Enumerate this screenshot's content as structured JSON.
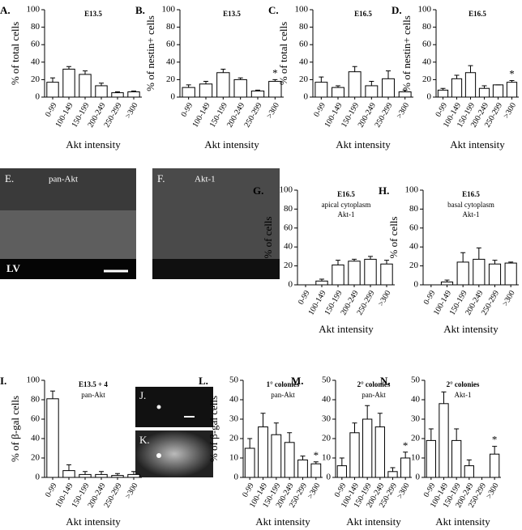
{
  "chart_data": [
    {
      "type": "bar",
      "panel": "A.",
      "title": "E13.5",
      "ylabel": "% of total cells",
      "xlabel": "Akt intensity",
      "categories": [
        "0-99",
        "100-149",
        "150-199",
        "200-249",
        "250-299",
        ">300"
      ],
      "values": [
        17,
        32,
        26,
        13,
        5,
        6
      ],
      "errors": [
        5,
        3,
        4,
        3,
        1,
        1
      ],
      "ylim": [
        0,
        100
      ],
      "yticks": [
        0,
        20,
        40,
        60,
        80,
        100
      ]
    },
    {
      "type": "bar",
      "panel": "B.",
      "title": "E13.5",
      "ylabel": "% of nestin+ cells",
      "xlabel": "Akt intensity",
      "categories": [
        "0-99",
        "100-149",
        "150-199",
        "200-249",
        "250-299",
        ">300"
      ],
      "values": [
        11,
        15,
        28,
        20,
        7,
        18
      ],
      "errors": [
        3,
        3,
        4,
        2,
        1,
        2
      ],
      "ylim": [
        0,
        100
      ],
      "yticks": [
        0,
        20,
        40,
        60,
        80,
        100
      ],
      "annotations": [
        {
          "text": "*",
          "category": ">300"
        }
      ]
    },
    {
      "type": "bar",
      "panel": "C.",
      "title": "E16.5",
      "ylabel": "% of total cells",
      "xlabel": "Akt intensity",
      "categories": [
        "0-99",
        "100-149",
        "150-199",
        "200-249",
        "250-299",
        ">300"
      ],
      "values": [
        17,
        11,
        29,
        13,
        21,
        6
      ],
      "errors": [
        6,
        2,
        6,
        5,
        9,
        2
      ],
      "ylim": [
        0,
        100
      ],
      "yticks": [
        0,
        20,
        40,
        60,
        80,
        100
      ]
    },
    {
      "type": "bar",
      "panel": "D.",
      "title": "E16.5",
      "ylabel": "% of nestin+ cells",
      "xlabel": "Akt intensity",
      "categories": [
        "0-99",
        "100-149",
        "150-199",
        "200-249",
        "250-299",
        ">300"
      ],
      "values": [
        8,
        21,
        28,
        10,
        14,
        17
      ],
      "errors": [
        2,
        4,
        8,
        3,
        0,
        2
      ],
      "ylim": [
        0,
        100
      ],
      "yticks": [
        0,
        20,
        40,
        60,
        80,
        100
      ],
      "annotations": [
        {
          "text": "*",
          "category": ">300"
        }
      ]
    },
    {
      "type": "bar",
      "panel": "G.",
      "title": "E16.5",
      "subtitle": [
        "apical cytoplasm",
        "Akt-1"
      ],
      "ylabel": "% of cells",
      "xlabel": "Akt intensity",
      "categories": [
        "0-99",
        "100-149",
        "150-199",
        "200-249",
        "250-299",
        ">300"
      ],
      "values": [
        0,
        4,
        21,
        25,
        27,
        22
      ],
      "errors": [
        0,
        2,
        5,
        2,
        3,
        4
      ],
      "ylim": [
        0,
        100
      ],
      "yticks": [
        0,
        20,
        40,
        60,
        80,
        100
      ]
    },
    {
      "type": "bar",
      "panel": "H.",
      "title": "E16.5",
      "subtitle": [
        "basal cytoplasm",
        "Akt-1"
      ],
      "ylabel": "% of cells",
      "xlabel": "Akt intensity",
      "categories": [
        "0-99",
        "100-149",
        "150-199",
        "200-249",
        "250-299",
        ">300"
      ],
      "values": [
        0,
        3,
        24,
        27,
        22,
        23
      ],
      "errors": [
        0,
        2,
        10,
        12,
        4,
        1
      ],
      "ylim": [
        0,
        100
      ],
      "yticks": [
        0,
        20,
        40,
        60,
        80,
        100
      ]
    },
    {
      "type": "bar",
      "panel": "I.",
      "title": "E13.5 + 4",
      "subtitle": [
        "pan-Akt"
      ],
      "ylabel": "% of β-gal cells",
      "xlabel": "Akt intensity",
      "categories": [
        "0-99",
        "100-149",
        "150-199",
        "200-249",
        "250-299",
        ">300"
      ],
      "values": [
        81,
        7,
        3,
        3,
        2,
        3
      ],
      "errors": [
        8,
        6,
        3,
        3,
        2,
        3
      ],
      "ylim": [
        0,
        100
      ],
      "yticks": [
        0,
        20,
        40,
        60,
        80,
        100
      ]
    },
    {
      "type": "bar",
      "panel": "L.",
      "title": "1° colonies",
      "subtitle": [
        "pan-Akt"
      ],
      "ylabel": "% of β-gal cells",
      "xlabel": "Akt intensity",
      "categories": [
        "0-99",
        "100-149",
        "150-199",
        "200-249",
        "250-299",
        ">300"
      ],
      "values": [
        15,
        26,
        22,
        18,
        9,
        7
      ],
      "errors": [
        5,
        7,
        6,
        5,
        2,
        1
      ],
      "ylim": [
        0,
        50
      ],
      "yticks": [
        0,
        10,
        20,
        30,
        40,
        50
      ],
      "annotations": [
        {
          "text": "*",
          "category": ">300"
        }
      ]
    },
    {
      "type": "bar",
      "panel": "M.",
      "title": "2° colonies",
      "subtitle": [
        "pan-Akt"
      ],
      "xlabel": "Akt intensity",
      "categories": [
        "0-99",
        "100-149",
        "150-199",
        "200-249",
        "250-299",
        ">300"
      ],
      "values": [
        6,
        23,
        30,
        26,
        3,
        10
      ],
      "errors": [
        4,
        5,
        7,
        7,
        2,
        3
      ],
      "ylim": [
        0,
        50
      ],
      "yticks": [
        0,
        10,
        20,
        30,
        40,
        50
      ],
      "annotations": [
        {
          "text": "*",
          "category": ">300"
        }
      ]
    },
    {
      "type": "bar",
      "panel": "N.",
      "title": "2° colonies",
      "subtitle": [
        "Akt-1"
      ],
      "xlabel": "Akt intensity",
      "categories": [
        "0-99",
        "100-149",
        "150-199",
        "200-249",
        "250-299",
        ">300"
      ],
      "values": [
        19,
        38,
        19,
        6,
        0,
        12
      ],
      "errors": [
        6,
        6,
        6,
        3,
        0,
        4
      ],
      "ylim": [
        0,
        50
      ],
      "yticks": [
        0,
        10,
        20,
        30,
        40,
        50
      ],
      "annotations": [
        {
          "text": "*",
          "category": ">300"
        }
      ]
    }
  ],
  "images": [
    {
      "panel": "E.",
      "label": "pan-Akt",
      "region": "LV"
    },
    {
      "panel": "F.",
      "label": "Akt-1"
    },
    {
      "panel": "J."
    },
    {
      "panel": "K."
    }
  ]
}
